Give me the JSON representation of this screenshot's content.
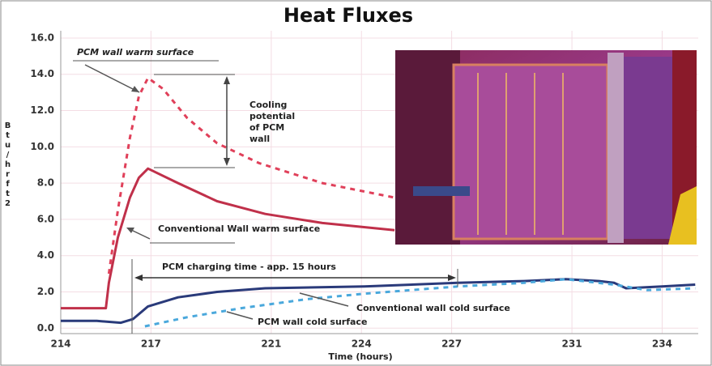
{
  "chart_data": {
    "type": "line",
    "title": "Heat Fluxes",
    "x_label": "Time (hours)",
    "y_label": "Btu/hrft2",
    "xlim": [
      214,
      235.2
    ],
    "xticks": [
      214,
      217,
      221,
      224,
      227,
      231,
      234
    ],
    "ylim": [
      -0.3,
      16.4
    ],
    "yticks": [
      {
        "value": 0,
        "label": "0.0"
      },
      {
        "value": 2,
        "label": "2.0"
      },
      {
        "value": 4,
        "label": "4.0"
      },
      {
        "value": 6,
        "label": "6.0"
      },
      {
        "value": 8,
        "label": "8.0"
      },
      {
        "value": 10,
        "label": "10.0"
      },
      {
        "value": 12,
        "label": "12.0"
      },
      {
        "value": 14,
        "label": "14.0"
      },
      {
        "value": 16,
        "label": "16.0"
      }
    ],
    "grid": true,
    "series": [
      {
        "name": "Conventional Wall warm surface",
        "color": "#c0304a",
        "style": "solid",
        "x": [
          214,
          215.5,
          215.6,
          215.9,
          216.3,
          216.6,
          216.9,
          217.9,
          219.2,
          220.8,
          222.7,
          225.1
        ],
        "values": [
          1.1,
          1.1,
          2.5,
          5,
          7.2,
          8.3,
          8.8,
          8.0,
          7.0,
          6.3,
          5.8,
          5.4
        ]
      },
      {
        "name": "PCM wall warm surface",
        "color": "#e0405a",
        "style": "dashed",
        "x": [
          215.6,
          215.9,
          216.3,
          216.6,
          216.9,
          217.4,
          218.2,
          219.2,
          220.6,
          222.7,
          225.1
        ],
        "values": [
          3.0,
          6.5,
          10.5,
          12.8,
          13.8,
          13.2,
          11.6,
          10.2,
          9.1,
          8.0,
          7.2
        ]
      },
      {
        "name": "Conventional wall cold surface",
        "color": "#2a3a7a",
        "style": "solid",
        "x": [
          214,
          215.2,
          216,
          216.4,
          216.9,
          217.9,
          219.2,
          220.8,
          224.1,
          227.2,
          229.4,
          230.8,
          231.9,
          232.4,
          232.8,
          234,
          235.1
        ],
        "values": [
          0.4,
          0.4,
          0.3,
          0.5,
          1.2,
          1.7,
          2.0,
          2.2,
          2.3,
          2.5,
          2.6,
          2.7,
          2.6,
          2.5,
          2.2,
          2.3,
          2.4
        ]
      },
      {
        "name": "PCM wall cold surface",
        "color": "#4aa8dc",
        "style": "dashed",
        "x": [
          216.8,
          218.2,
          220,
          222.2,
          224.1,
          227.2,
          229.4,
          230.8,
          232.4,
          233.5,
          235.1
        ],
        "values": [
          0.1,
          0.6,
          1.1,
          1.6,
          1.9,
          2.3,
          2.5,
          2.7,
          2.4,
          2.1,
          2.2
        ]
      }
    ],
    "annotations": {
      "cooling": [
        "Cooling",
        "potential",
        "of PCM",
        "wall"
      ],
      "charging": "PCM charging time - app. 15 hours"
    }
  }
}
